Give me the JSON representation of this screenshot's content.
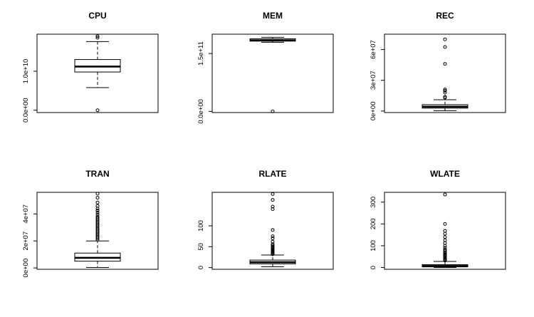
{
  "chart_data": [
    {
      "type": "boxplot",
      "title": "CPU",
      "ylim": [
        -600000000,
        19500000000
      ],
      "yticks": [
        0,
        10000000000
      ],
      "ytick_labels": [
        "0.0e+00",
        "1.0e+10"
      ],
      "box": {
        "whisker_low": 5800000000,
        "q1": 9800000000,
        "median": 11200000000,
        "q3": 13000000000,
        "whisker_high": 17600000000
      },
      "outliers": [
        0,
        18600000000,
        19000000000
      ]
    },
    {
      "type": "boxplot",
      "title": "MEM",
      "ylim": [
        -3000000000,
        200000000000
      ],
      "yticks": [
        0,
        150000000000
      ],
      "ytick_labels": [
        "0.0e+00",
        "1.5e+11"
      ],
      "box": {
        "whisker_low": 179000000000,
        "q1": 182000000000,
        "median": 184000000000,
        "q3": 188000000000,
        "whisker_high": 192000000000
      },
      "outliers": [
        0
      ]
    },
    {
      "type": "boxplot",
      "title": "REC",
      "ylim": [
        -1500000,
        75000000
      ],
      "yticks": [
        0,
        30000000,
        60000000
      ],
      "ytick_labels": [
        "0e+00",
        "3e+07",
        "6e+07"
      ],
      "box": {
        "whisker_low": 300000,
        "q1": 2800000,
        "median": 4200000,
        "q3": 6200000,
        "whisker_high": 11000000
      },
      "outliers": [
        13000000,
        13900000,
        18000000,
        19800000,
        21000000,
        46000000,
        62500000,
        70000000
      ]
    },
    {
      "type": "boxplot",
      "title": "TRAN",
      "ylim": [
        -1000000,
        56000000
      ],
      "yticks": [
        0,
        20000000,
        40000000
      ],
      "ytick_labels": [
        "0e+00",
        "2e+07",
        "4e+07"
      ],
      "box": {
        "whisker_low": 300000,
        "q1": 5000000,
        "median": 7500000,
        "q3": 11000000,
        "whisker_high": 20000000
      },
      "outliers": [
        21000000,
        22000000,
        23000000,
        24000000,
        25000000,
        26000000,
        27000000,
        28000000,
        29000000,
        30000000,
        31000000,
        32000000,
        33000000,
        34000000,
        35000000,
        36000000,
        37000000,
        38000000,
        39500000,
        41000000,
        42500000,
        44000000,
        46000000,
        48500000,
        52000000,
        55000000
      ]
    },
    {
      "type": "boxplot",
      "title": "RLATE",
      "ylim": [
        -4,
        180
      ],
      "yticks": [
        0,
        50,
        100
      ],
      "ytick_labels": [
        "0",
        "50",
        "100"
      ],
      "box": {
        "whisker_low": 2,
        "q1": 9,
        "median": 13,
        "q3": 18,
        "whisker_high": 30
      },
      "outliers": [
        32,
        34,
        36,
        38,
        40,
        42,
        44,
        46,
        48,
        50,
        53,
        56,
        62,
        70,
        75,
        90,
        140,
        146,
        162,
        176
      ]
    },
    {
      "type": "boxplot",
      "title": "WLATE",
      "ylim": [
        -8,
        345
      ],
      "yticks": [
        0,
        100,
        200,
        300
      ],
      "ytick_labels": [
        "0",
        "100",
        "200",
        "300"
      ],
      "box": {
        "whisker_low": 0,
        "q1": 3,
        "median": 7,
        "q3": 13,
        "whisker_high": 28
      },
      "outliers": [
        32,
        36,
        40,
        44,
        48,
        52,
        56,
        60,
        65,
        70,
        76,
        82,
        90,
        100,
        112,
        125,
        140,
        155,
        168,
        200,
        335
      ]
    }
  ]
}
